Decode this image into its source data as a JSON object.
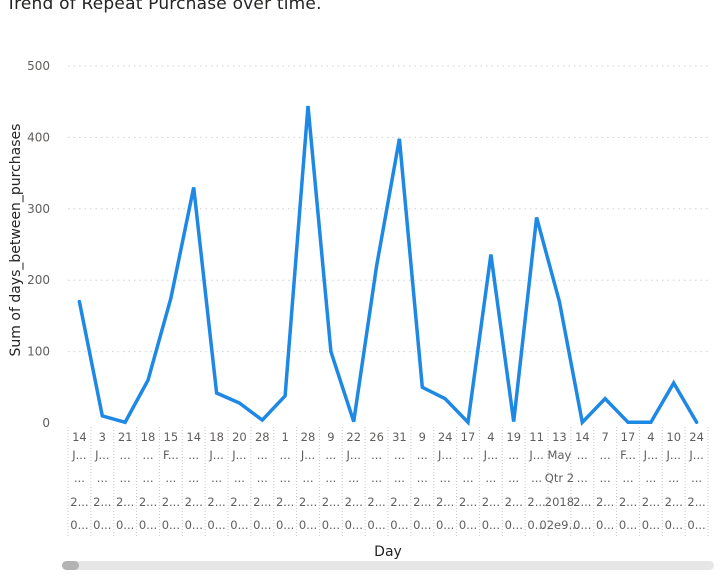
{
  "title": "Trend of Repeat Purchase over time.",
  "colors": {
    "line": "#1E88E5",
    "grid": "#D0D0D0"
  },
  "chart_data": {
    "type": "line",
    "title": "Trend of Repeat Purchase over time.",
    "xlabel": "Day",
    "ylabel": "Sum of days_between_purchases",
    "ylim": [
      0,
      500
    ],
    "yticks": [
      0,
      100,
      200,
      300,
      400,
      500
    ],
    "grid": true,
    "x": [
      "14",
      "3",
      "21",
      "18",
      "15",
      "14",
      "18",
      "20",
      "28",
      "1",
      "28",
      "9",
      "22",
      "26",
      "31",
      "9",
      "24",
      "17",
      "4",
      "19",
      "11",
      "13",
      "14",
      "7",
      "17",
      "4",
      "10",
      "24"
    ],
    "x_rows": [
      [
        "14",
        "3",
        "21",
        "18",
        "15",
        "14",
        "18",
        "20",
        "28",
        "1",
        "28",
        "9",
        "22",
        "26",
        "31",
        "9",
        "24",
        "17",
        "4",
        "19",
        "11",
        "13",
        "14",
        "7",
        "17",
        "4",
        "10",
        "24"
      ],
      [
        "J...",
        "J...",
        "...",
        "...",
        "F...",
        "...",
        "J...",
        "J...",
        "...",
        "...",
        "J...",
        "...",
        "J...",
        "...",
        "...",
        "...",
        "J...",
        "...",
        "J...",
        "...",
        "J...",
        "May",
        "...",
        "...",
        "F...",
        "J...",
        "J...",
        "J..."
      ],
      [
        "...",
        "...",
        "...",
        "...",
        "...",
        "...",
        "...",
        "...",
        "...",
        "...",
        "...",
        "...",
        "...",
        "...",
        "...",
        "...",
        "...",
        "...",
        "...",
        "...",
        "...",
        "Qtr 2",
        "...",
        "...",
        "...",
        "...",
        "...",
        "..."
      ],
      [
        "2...",
        "2...",
        "2...",
        "2...",
        "2...",
        "2...",
        "2...",
        "2...",
        "2...",
        "2...",
        "2...",
        "2...",
        "2...",
        "2...",
        "2...",
        "2...",
        "2...",
        "2...",
        "2...",
        "2...",
        "2...",
        "2018",
        "2...",
        "2...",
        "2...",
        "2...",
        "2...",
        "2..."
      ],
      [
        "0...",
        "0...",
        "0...",
        "0...",
        "0...",
        "0...",
        "0...",
        "0...",
        "0...",
        "0...",
        "0...",
        "0...",
        "0...",
        "0...",
        "0...",
        "0...",
        "0...",
        "0...",
        "0...",
        "0...",
        "0...",
        "02e9...",
        "0...",
        "0...",
        "0...",
        "0...",
        "0...",
        "0..."
      ]
    ],
    "series": [
      {
        "values": [
          170,
          10,
          1,
          60,
          175,
          330,
          42,
          28,
          4,
          38,
          444,
          100,
          2,
          220,
          398,
          50,
          34,
          1,
          236,
          2,
          288,
          170,
          1,
          34,
          1,
          1,
          56,
          1
        ]
      }
    ]
  }
}
